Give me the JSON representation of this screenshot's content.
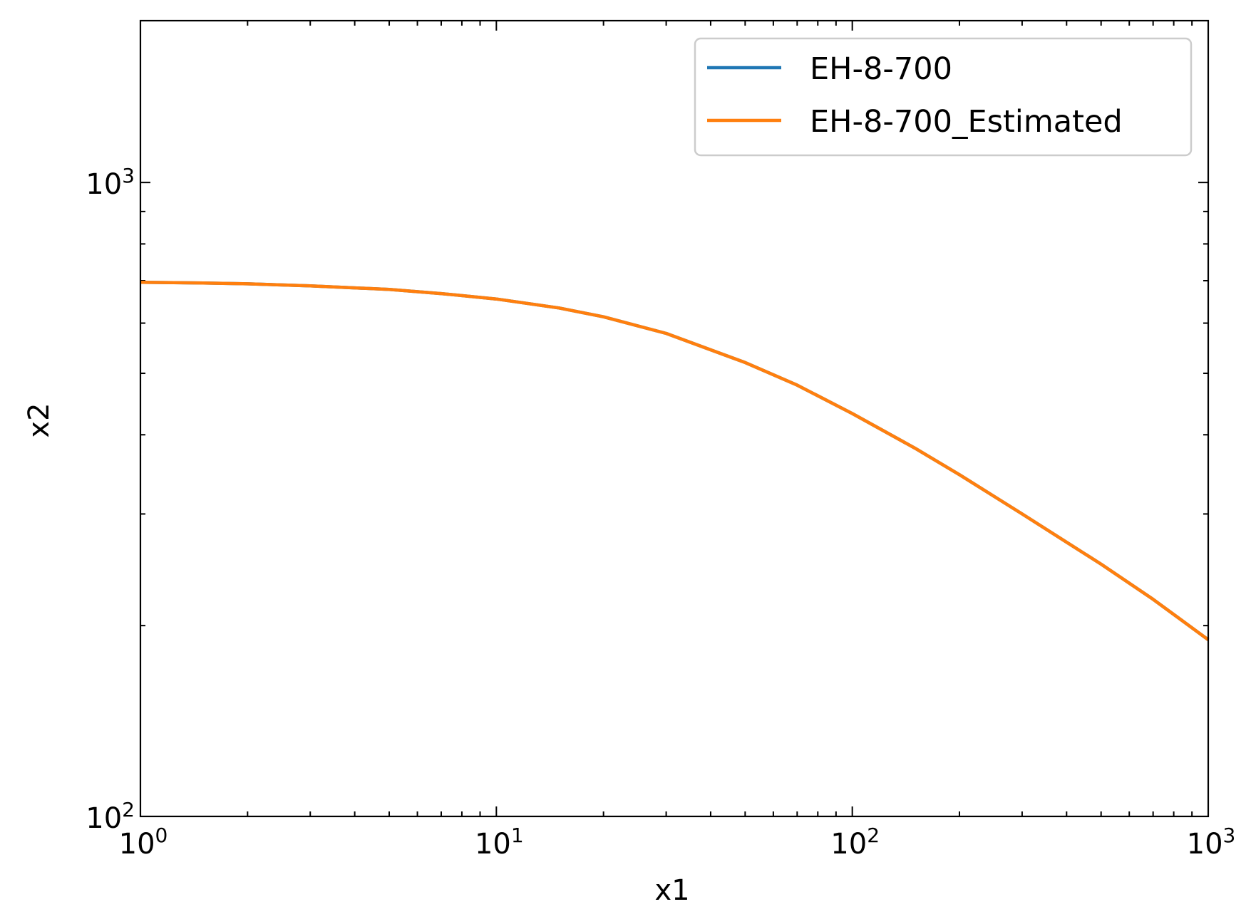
{
  "chart_data": {
    "type": "line",
    "xlabel": "x1",
    "ylabel": "x2",
    "xscale": "log",
    "yscale": "log",
    "xlim": [
      1,
      1000
    ],
    "ylim": [
      100,
      1800
    ],
    "grid": false,
    "legend_position": "top-right",
    "x_ticks": [
      {
        "value": 1,
        "base": "10",
        "exp": "0"
      },
      {
        "value": 10,
        "base": "10",
        "exp": "1"
      },
      {
        "value": 100,
        "base": "10",
        "exp": "2"
      },
      {
        "value": 1000,
        "base": "10",
        "exp": "3"
      }
    ],
    "y_ticks": [
      {
        "value": 100,
        "base": "10",
        "exp": "2"
      },
      {
        "value": 1000,
        "base": "10",
        "exp": "3"
      }
    ],
    "x": [
      1,
      1.5,
      2,
      3,
      5,
      7,
      10,
      15,
      20,
      30,
      50,
      70,
      100,
      150,
      200,
      300,
      500,
      700,
      1000
    ],
    "series": [
      {
        "name": "EH-8-700",
        "color": "#1f77b4",
        "values": [
          696,
          694,
          692,
          687,
          678,
          668,
          655,
          634,
          614,
          578,
          520,
          479,
          432,
          381,
          346,
          300,
          250,
          220,
          190
        ]
      },
      {
        "name": "EH-8-700_Estimated",
        "color": "#ff7f0e",
        "values": [
          696,
          694,
          692,
          687,
          678,
          668,
          655,
          634,
          614,
          578,
          520,
          479,
          432,
          381,
          346,
          300,
          250,
          220,
          190
        ]
      }
    ]
  }
}
